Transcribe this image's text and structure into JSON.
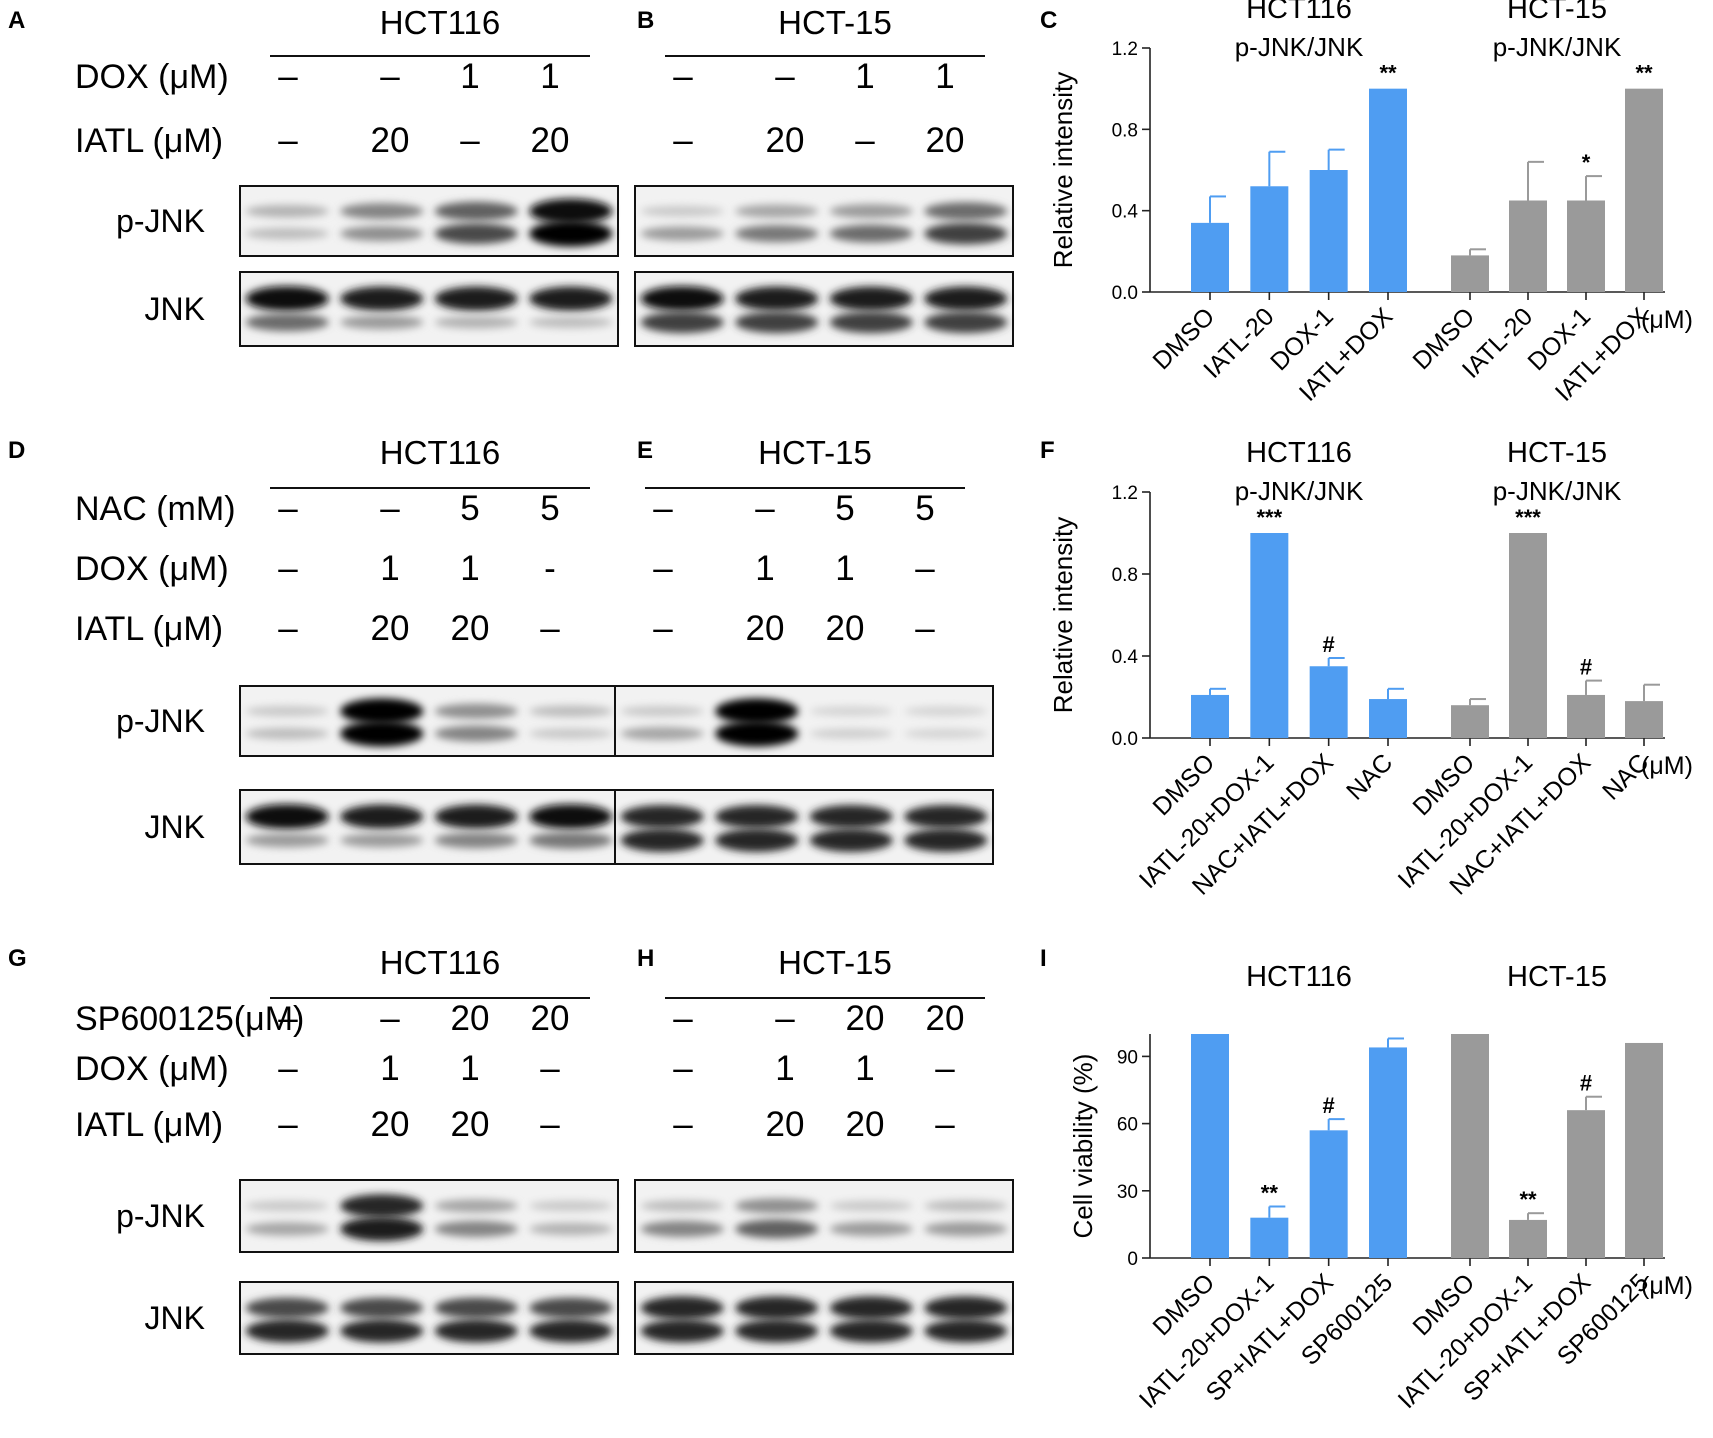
{
  "blots": [
    {
      "label": "A",
      "cell": "HCT116",
      "lane_left": 270,
      "lane_right": 590,
      "title_y": 34,
      "rule_y": 56,
      "cond_label_x": 75,
      "conditions": [
        {
          "name": "DOX (μM)",
          "values": [
            "–",
            "–",
            "1",
            "1"
          ],
          "y": 88
        },
        {
          "name": "IATL (μM)",
          "values": [
            "–",
            "20",
            "–",
            "20"
          ],
          "y": 152
        }
      ],
      "boxes": [
        {
          "protein": "p-JNK",
          "top": 186,
          "bottom": 256,
          "band1": [
            0.25,
            0.45,
            0.6,
            0.95
          ],
          "band2": [
            0.2,
            0.4,
            0.7,
            1.0
          ]
        },
        {
          "protein": "JNK",
          "top": 272,
          "bottom": 346,
          "band1": [
            0.95,
            0.9,
            0.9,
            0.9
          ],
          "band2": [
            0.55,
            0.35,
            0.25,
            0.2
          ]
        }
      ]
    },
    {
      "label": "B",
      "cell": "HCT-15",
      "lane_left": 665,
      "lane_right": 985,
      "title_y": 34,
      "rule_y": 56,
      "cond_label_x": null,
      "conditions": [
        {
          "name": "",
          "values": [
            "–",
            "–",
            "1",
            "1"
          ],
          "y": 88
        },
        {
          "name": "",
          "values": [
            "–",
            "20",
            "–",
            "20"
          ],
          "y": 152
        }
      ],
      "boxes": [
        {
          "protein": "",
          "top": 186,
          "bottom": 256,
          "band1": [
            0.15,
            0.3,
            0.35,
            0.55
          ],
          "band2": [
            0.35,
            0.5,
            0.55,
            0.75
          ]
        },
        {
          "protein": "",
          "top": 272,
          "bottom": 346,
          "band1": [
            0.95,
            0.9,
            0.9,
            0.9
          ],
          "band2": [
            0.75,
            0.75,
            0.75,
            0.75
          ]
        }
      ]
    },
    {
      "label": "D",
      "cell": "HCT116",
      "lane_left": 270,
      "lane_right": 590,
      "title_y": 464,
      "rule_y": 488,
      "cond_label_x": 75,
      "conditions": [
        {
          "name": "NAC (mM)",
          "values": [
            "–",
            "–",
            "5",
            "5"
          ],
          "y": 520
        },
        {
          "name": "DOX (μM)",
          "values": [
            "–",
            "1",
            "1",
            "-"
          ],
          "y": 580
        },
        {
          "name": "IATL (μM)",
          "values": [
            "–",
            "20",
            "20",
            "–"
          ],
          "y": 640
        }
      ],
      "boxes": [
        {
          "protein": "p-JNK",
          "top": 686,
          "bottom": 756,
          "band1": [
            0.15,
            1.0,
            0.4,
            0.2
          ],
          "band2": [
            0.2,
            1.0,
            0.45,
            0.15
          ]
        },
        {
          "protein": "JNK",
          "top": 790,
          "bottom": 864,
          "band1": [
            0.95,
            0.9,
            0.9,
            0.95
          ],
          "band2": [
            0.35,
            0.35,
            0.45,
            0.5
          ]
        }
      ]
    },
    {
      "label": "E",
      "cell": "HCT-15",
      "lane_left": 645,
      "lane_right": 965,
      "title_y": 464,
      "rule_y": 488,
      "cond_label_x": null,
      "conditions": [
        {
          "name": "",
          "values": [
            "–",
            "–",
            "5",
            "5"
          ],
          "y": 520
        },
        {
          "name": "",
          "values": [
            "–",
            "1",
            "1",
            "–"
          ],
          "y": 580
        },
        {
          "name": "",
          "values": [
            "–",
            "20",
            "20",
            "–"
          ],
          "y": 640
        }
      ],
      "boxes": [
        {
          "protein": "",
          "top": 686,
          "bottom": 756,
          "band1": [
            0.15,
            1.0,
            0.1,
            0.1
          ],
          "band2": [
            0.3,
            1.0,
            0.12,
            0.1
          ]
        },
        {
          "protein": "",
          "top": 790,
          "bottom": 864,
          "band1": [
            0.85,
            0.85,
            0.85,
            0.85
          ],
          "band2": [
            0.85,
            0.85,
            0.85,
            0.85
          ]
        }
      ]
    },
    {
      "label": "G",
      "cell": "HCT116",
      "lane_left": 270,
      "lane_right": 590,
      "title_y": 974,
      "rule_y": 998,
      "cond_label_x": 75,
      "conditions": [
        {
          "name": "SP600125(μM)",
          "values": [
            "–",
            "–",
            "20",
            "20"
          ],
          "y": 1030
        },
        {
          "name": "DOX (μM)",
          "values": [
            "–",
            "1",
            "1",
            "–"
          ],
          "y": 1080
        },
        {
          "name": "IATL (μM)",
          "values": [
            "–",
            "20",
            "20",
            "–"
          ],
          "y": 1136
        }
      ],
      "boxes": [
        {
          "protein": "p-JNK",
          "top": 1180,
          "bottom": 1252,
          "band1": [
            0.15,
            0.85,
            0.3,
            0.15
          ],
          "band2": [
            0.3,
            0.9,
            0.45,
            0.25
          ]
        },
        {
          "protein": "JNK",
          "top": 1282,
          "bottom": 1354,
          "band1": [
            0.7,
            0.7,
            0.7,
            0.7
          ],
          "band2": [
            0.85,
            0.85,
            0.85,
            0.85
          ]
        }
      ]
    },
    {
      "label": "H",
      "cell": "HCT-15",
      "lane_left": 665,
      "lane_right": 985,
      "title_y": 974,
      "rule_y": 998,
      "cond_label_x": null,
      "conditions": [
        {
          "name": "",
          "values": [
            "–",
            "–",
            "20",
            "20"
          ],
          "y": 1030
        },
        {
          "name": "",
          "values": [
            "–",
            "1",
            "1",
            "–"
          ],
          "y": 1080
        },
        {
          "name": "",
          "values": [
            "–",
            "20",
            "20",
            "–"
          ],
          "y": 1136
        }
      ],
      "boxes": [
        {
          "protein": "",
          "top": 1180,
          "bottom": 1252,
          "band1": [
            0.2,
            0.4,
            0.15,
            0.2
          ],
          "band2": [
            0.45,
            0.6,
            0.35,
            0.35
          ]
        },
        {
          "protein": "",
          "top": 1282,
          "bottom": 1354,
          "band1": [
            0.85,
            0.85,
            0.85,
            0.85
          ],
          "band2": [
            0.85,
            0.85,
            0.85,
            0.85
          ]
        }
      ]
    }
  ],
  "chart_data": [
    {
      "label": "C",
      "type": "bar",
      "ylabel": "Relative intensity",
      "ylim": [
        0,
        1.2
      ],
      "yticks": [
        0,
        0.4,
        0.8,
        1.2
      ],
      "tick_labels": [
        "0.0",
        "0.4",
        "0.8",
        "1.2"
      ],
      "unit": "(μM)",
      "groups": [
        {
          "title1": "HCT116",
          "title2": "p-JNK/JNK",
          "color": "#4f9df2",
          "categories": [
            "DMSO",
            "IATL-20",
            "DOX-1",
            "IATL+DOX"
          ],
          "values": [
            0.34,
            0.52,
            0.6,
            1.0
          ],
          "errors": [
            0.13,
            0.17,
            0.1,
            0
          ],
          "annotations": [
            "",
            "",
            "",
            "**"
          ]
        },
        {
          "title1": "HCT-15",
          "title2": "p-JNK/JNK",
          "color": "#9a9a9a",
          "categories": [
            "DMSO",
            "IATL-20",
            "DOX-1",
            "IATL+DOX"
          ],
          "values": [
            0.18,
            0.45,
            0.45,
            1.0
          ],
          "errors": [
            0.03,
            0.19,
            0.12,
            0
          ],
          "annotations": [
            "",
            "",
            "*",
            "**"
          ]
        }
      ]
    },
    {
      "label": "F",
      "type": "bar",
      "ylabel": "Relative intensity",
      "ylim": [
        0,
        1.2
      ],
      "yticks": [
        0,
        0.4,
        0.8,
        1.2
      ],
      "tick_labels": [
        "0.0",
        "0.4",
        "0.8",
        "1.2"
      ],
      "unit": "(μM)",
      "groups": [
        {
          "title1": "HCT116",
          "title2": "p-JNK/JNK",
          "color": "#4f9df2",
          "categories": [
            "DMSO",
            "IATL-20+DOX-1",
            "NAC+IATL+DOX",
            "NAC"
          ],
          "values": [
            0.21,
            1.0,
            0.35,
            0.19
          ],
          "errors": [
            0.03,
            0,
            0.04,
            0.05
          ],
          "annotations": [
            "",
            "***",
            "#",
            ""
          ]
        },
        {
          "title1": "HCT-15",
          "title2": "p-JNK/JNK",
          "color": "#9a9a9a",
          "categories": [
            "DMSO",
            "IATL-20+DOX-1",
            "NAC+IATL+DOX",
            "NAC"
          ],
          "values": [
            0.16,
            1.0,
            0.21,
            0.18
          ],
          "errors": [
            0.03,
            0,
            0.07,
            0.08
          ],
          "annotations": [
            "",
            "***",
            "#",
            ""
          ]
        }
      ]
    },
    {
      "label": "I",
      "type": "bar",
      "ylabel": "Cell viability (%)",
      "ylim": [
        0,
        100
      ],
      "yticks": [
        0,
        30,
        60,
        90
      ],
      "tick_labels": [
        "0",
        "30",
        "60",
        "90"
      ],
      "unit": "(μM)",
      "groups": [
        {
          "title1": "HCT116",
          "title2": "",
          "color": "#4f9df2",
          "categories": [
            "DMSO",
            "IATL-20+DOX-1",
            "SP+IATL+DOX",
            "SP600125"
          ],
          "values": [
            100,
            18,
            57,
            94
          ],
          "errors": [
            0,
            5,
            5,
            4
          ],
          "annotations": [
            "",
            "**",
            "#",
            ""
          ]
        },
        {
          "title1": "HCT-15",
          "title2": "",
          "color": "#9a9a9a",
          "categories": [
            "DMSO",
            "IATL-20+DOX-1",
            "SP+IATL+DOX",
            "SP600125"
          ],
          "values": [
            100,
            17,
            66,
            96
          ],
          "errors": [
            0,
            3,
            6,
            0
          ],
          "annotations": [
            "",
            "**",
            "#",
            ""
          ]
        }
      ]
    }
  ]
}
